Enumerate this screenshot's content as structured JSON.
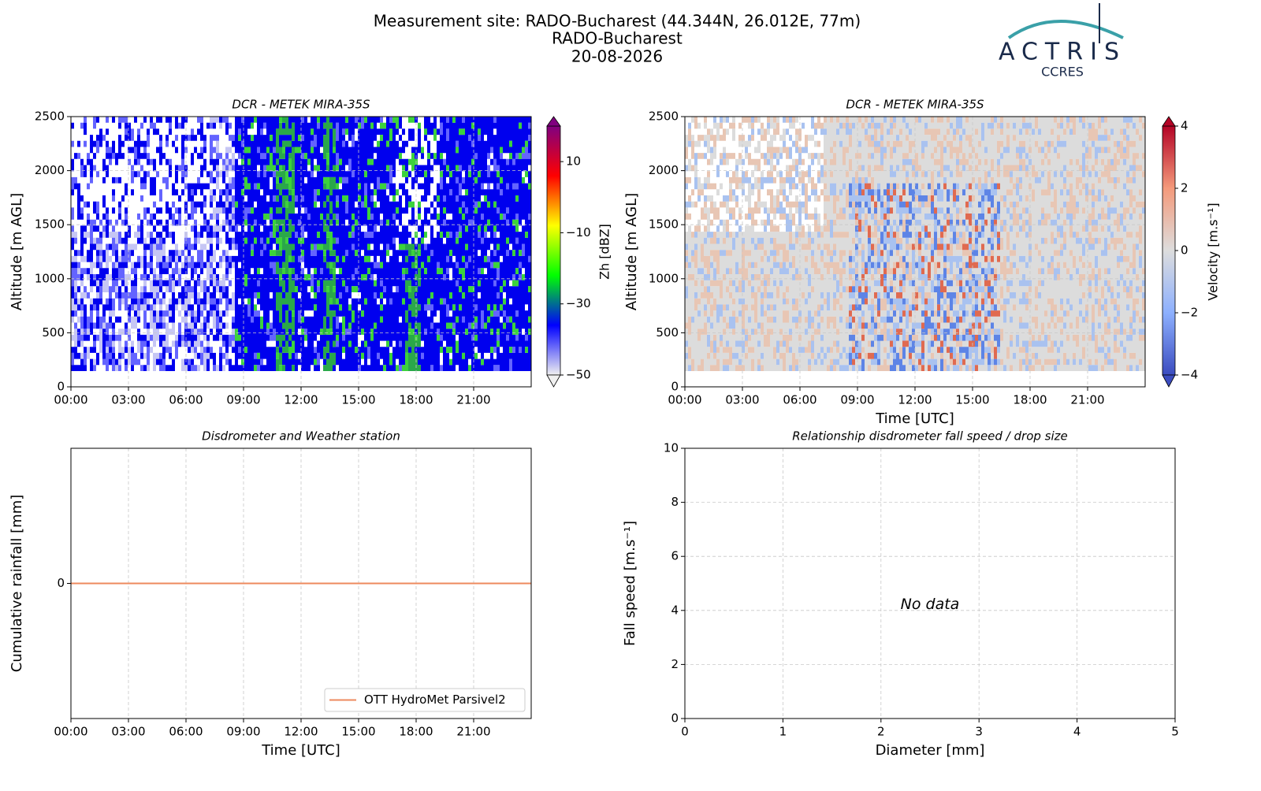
{
  "header": {
    "title_lines": [
      "Measurement site: RADO-Bucharest (44.344N, 26.012E, 77m)",
      "RADO-Bucharest",
      "20-08-2026"
    ],
    "logo": {
      "name": "ACTRIS",
      "subtitle": "CCRES"
    }
  },
  "chart_data": [
    {
      "type": "heatmap",
      "title": "DCR - METEK MIRA-35S",
      "ylabel": "Altitude [m AGL]",
      "xlim": [
        0,
        24
      ],
      "xticks": [
        {
          "value": 0,
          "label": "00:00"
        },
        {
          "value": 3,
          "label": "03:00"
        },
        {
          "value": 6,
          "label": "06:00"
        },
        {
          "value": 9,
          "label": "09:00"
        },
        {
          "value": 12,
          "label": "12:00"
        },
        {
          "value": 15,
          "label": "15:00"
        },
        {
          "value": 18,
          "label": "18:00"
        },
        {
          "value": 21,
          "label": "21:00"
        }
      ],
      "ylim": [
        0,
        2500
      ],
      "yticks": [
        0,
        500,
        1000,
        1500,
        2000,
        2500
      ],
      "grid": true,
      "colorbar": {
        "label": "Zh [dBZ]",
        "clim": [
          -50,
          20
        ],
        "ticks": [
          {
            "value": -50,
            "label": "−50"
          },
          {
            "value": -30,
            "label": "−30"
          },
          {
            "value": -10,
            "label": "−10"
          },
          10
        ],
        "colors": [
          "#f0f0f0",
          "#0000ff",
          "#00ff00",
          "#ffff00",
          "#ff0000",
          "#800080"
        ]
      }
    },
    {
      "type": "heatmap",
      "title": "DCR - METEK MIRA-35S",
      "ylabel": "Altitude [m AGL]",
      "xlabel": "Time [UTC]",
      "xlim": [
        0,
        24
      ],
      "xticks": [
        {
          "value": 0,
          "label": "00:00"
        },
        {
          "value": 3,
          "label": "03:00"
        },
        {
          "value": 6,
          "label": "06:00"
        },
        {
          "value": 9,
          "label": "09:00"
        },
        {
          "value": 12,
          "label": "12:00"
        },
        {
          "value": 15,
          "label": "15:00"
        },
        {
          "value": 18,
          "label": "18:00"
        },
        {
          "value": 21,
          "label": "21:00"
        }
      ],
      "ylim": [
        0,
        2500
      ],
      "yticks": [
        0,
        500,
        1000,
        1500,
        2000,
        2500
      ],
      "grid": true,
      "colorbar": {
        "label": "Velocity [m.s⁻¹]",
        "clim": [
          -4,
          4
        ],
        "ticks": [
          {
            "value": -4,
            "label": "−4"
          },
          {
            "value": -2,
            "label": "−2"
          },
          0,
          2,
          4
        ],
        "colors": [
          "#3b4cc0",
          "#8db0fe",
          "#dddddd",
          "#f49a7b",
          "#b40426"
        ]
      }
    },
    {
      "type": "line",
      "title": "Disdrometer and Weather station",
      "ylabel": "Cumulative rainfall [mm]",
      "xlabel": "Time [UTC]",
      "xlim": [
        0,
        24
      ],
      "xticks": [
        {
          "value": 0,
          "label": "00:00"
        },
        {
          "value": 3,
          "label": "03:00"
        },
        {
          "value": 6,
          "label": "06:00"
        },
        {
          "value": 9,
          "label": "09:00"
        },
        {
          "value": 12,
          "label": "12:00"
        },
        {
          "value": 15,
          "label": "15:00"
        },
        {
          "value": 18,
          "label": "18:00"
        },
        {
          "value": 21,
          "label": "21:00"
        }
      ],
      "ylim": [
        -1,
        1
      ],
      "yticks": [
        0
      ],
      "grid": true,
      "legend": "lower right",
      "x": [
        0,
        24
      ],
      "series": [
        {
          "name": "OTT HydroMet Parsivel2",
          "color": "#ee8a5e",
          "values": [
            0,
            0
          ]
        }
      ]
    },
    {
      "type": "scatter",
      "title": "Relationship disdrometer fall speed / drop size",
      "ylabel": "Fall speed [m.s⁻¹]",
      "xlabel": "Diameter [mm]",
      "xlim": [
        0,
        5
      ],
      "xticks": [
        0,
        1,
        2,
        3,
        4,
        5
      ],
      "ylim": [
        0,
        10
      ],
      "yticks": [
        0,
        2,
        4,
        6,
        8,
        10
      ],
      "grid": true,
      "annotation": "No data"
    }
  ]
}
